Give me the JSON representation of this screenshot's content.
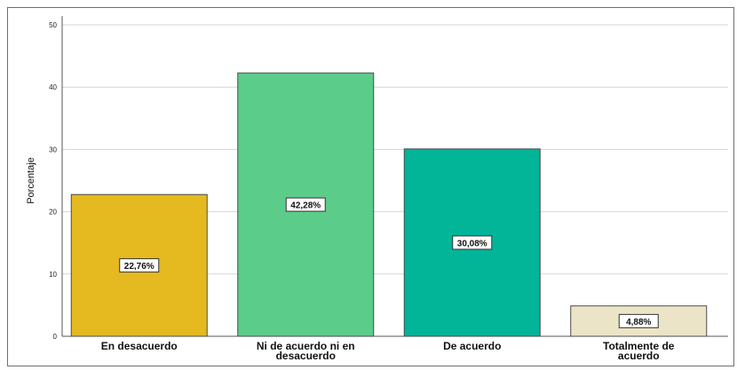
{
  "chart_data": {
    "type": "bar",
    "title": "",
    "xlabel": "",
    "ylabel": "Porcentaje",
    "ylim": [
      0,
      50
    ],
    "yticks": [
      0,
      10,
      20,
      30,
      40,
      50
    ],
    "categories": [
      [
        "En desacuerdo"
      ],
      [
        "Ni de acuerdo ni en",
        "desacuerdo"
      ],
      [
        "De acuerdo"
      ],
      [
        "Totalmente de",
        "acuerdo"
      ]
    ],
    "values": [
      22.76,
      42.28,
      30.08,
      4.88
    ],
    "data_labels": [
      "22,76%",
      "42,28%",
      "30,08%",
      "4,88%"
    ],
    "colors": [
      "#e5b920",
      "#5ccc8a",
      "#02b498",
      "#ece4c6"
    ],
    "grid": true,
    "legend": "none"
  }
}
